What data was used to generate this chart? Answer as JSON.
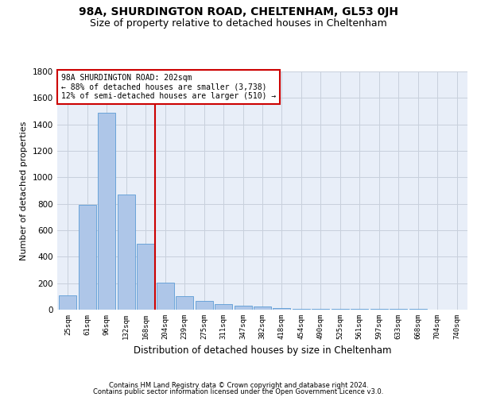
{
  "title": "98A, SHURDINGTON ROAD, CHELTENHAM, GL53 0JH",
  "subtitle": "Size of property relative to detached houses in Cheltenham",
  "xlabel": "Distribution of detached houses by size in Cheltenham",
  "ylabel": "Number of detached properties",
  "footer1": "Contains HM Land Registry data © Crown copyright and database right 2024.",
  "footer2": "Contains public sector information licensed under the Open Government Licence v3.0.",
  "bins": [
    "25sqm",
    "61sqm",
    "96sqm",
    "132sqm",
    "168sqm",
    "204sqm",
    "239sqm",
    "275sqm",
    "311sqm",
    "347sqm",
    "382sqm",
    "418sqm",
    "454sqm",
    "490sqm",
    "525sqm",
    "561sqm",
    "597sqm",
    "633sqm",
    "668sqm",
    "704sqm",
    "740sqm"
  ],
  "values": [
    110,
    790,
    1490,
    870,
    500,
    205,
    100,
    65,
    40,
    30,
    25,
    10,
    8,
    7,
    6,
    5,
    5,
    4,
    4,
    3,
    0
  ],
  "bar_color": "#aec6e8",
  "bar_edge_color": "#5b9bd5",
  "highlight_line_color": "#cc0000",
  "annotation_text": "98A SHURDINGTON ROAD: 202sqm\n← 88% of detached houses are smaller (3,738)\n12% of semi-detached houses are larger (510) →",
  "annotation_box_color": "#cc0000",
  "annotation_text_color": "#000000",
  "ylim": [
    0,
    1800
  ],
  "yticks": [
    0,
    200,
    400,
    600,
    800,
    1000,
    1200,
    1400,
    1600,
    1800
  ],
  "grid_color": "#c8d0dc",
  "background_color": "#e8eef8",
  "title_fontsize": 10,
  "subtitle_fontsize": 9,
  "footer_fontsize": 6
}
